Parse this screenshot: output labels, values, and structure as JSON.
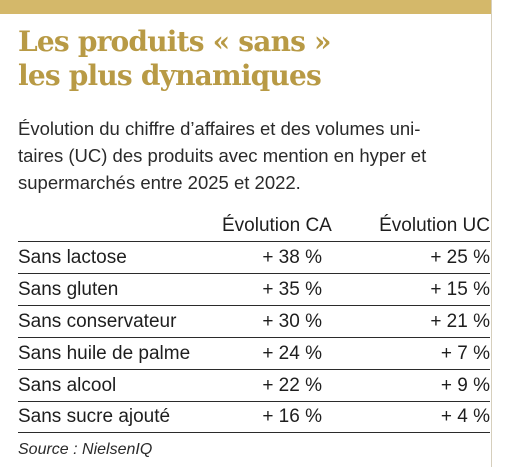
{
  "title_line1": "Les produits « sans »",
  "title_line2": "les plus dynamiques",
  "subtitle_line1": "Évolution du chiffre d’affaires et des volumes uni-",
  "subtitle_line2": "taires (UC) des produits avec mention en hyper et",
  "subtitle_line3": "supermarchés entre 2025 et 2022.",
  "colors": {
    "accent": "#b89a45",
    "top_bar": "#d4b86a",
    "rule": "#2b2b2b"
  },
  "source": "Source : NielsenIQ",
  "chart_data": {
    "type": "table",
    "title": "Les produits « sans » les plus dynamiques",
    "columns": [
      "",
      "Évolution CA",
      "Évolution UC"
    ],
    "rows": [
      {
        "label": "Sans lactose",
        "ca": "+ 38 %",
        "uc": "+ 25 %"
      },
      {
        "label": "Sans gluten",
        "ca": "+ 35 %",
        "uc": "+ 15 %"
      },
      {
        "label": "Sans conservateur",
        "ca": "+ 30 %",
        "uc": "+ 21 %"
      },
      {
        "label": "Sans huile de palme",
        "ca": "+ 24 %",
        "uc": "+ 7 %"
      },
      {
        "label": "Sans alcool",
        "ca": "+ 22 %",
        "uc": "+ 9 %"
      },
      {
        "label": "Sans sucre ajouté",
        "ca": "+ 16 %",
        "uc": "+ 4 %"
      }
    ]
  }
}
